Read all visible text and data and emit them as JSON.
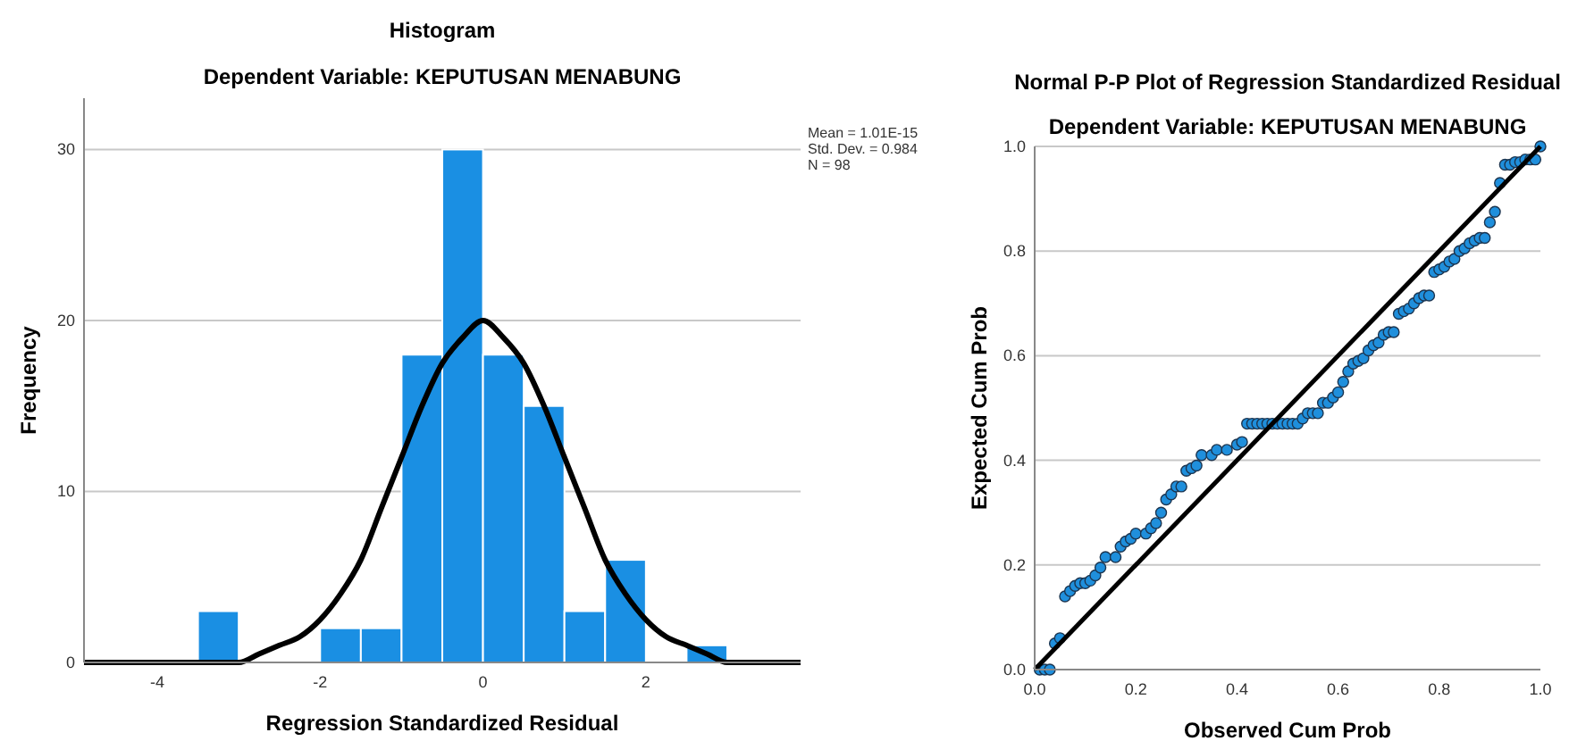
{
  "chart_data": [
    {
      "type": "histogram",
      "title": "Histogram",
      "subtitle": "Dependent Variable: KEPUTUSAN MENABUNG",
      "xlabel": "Regression Standardized Residual",
      "ylabel": "Frequency",
      "xlim": [
        -4.9,
        3.9
      ],
      "ylim": [
        0,
        33
      ],
      "xticks": [
        -4,
        -2,
        0,
        2
      ],
      "yticks": [
        0,
        10,
        20,
        30
      ],
      "grid": "y",
      "annotations": [
        "Mean = 1.01E-15",
        "Std. Dev. = 0.984",
        "N = 98"
      ],
      "series": [
        {
          "type": "histogram",
          "color": "#1a8fe3",
          "bins": [
            -3.5,
            -3,
            -2.5,
            -2,
            -1.5,
            -1,
            -0.5,
            0,
            0.5,
            1,
            1.5,
            2,
            2.5,
            3
          ],
          "values": [
            3,
            0,
            0,
            2,
            2,
            18,
            30,
            18,
            15,
            3,
            6,
            0,
            1
          ]
        },
        {
          "type": "line",
          "color": "#000000",
          "x": [
            -4.9,
            -4,
            -3.75,
            -3.5,
            -3.25,
            -3,
            -2.75,
            -2.5,
            -2.25,
            -2,
            -1.75,
            -1.5,
            -1.25,
            -1,
            -0.75,
            -0.5,
            -0.25,
            0,
            0.25,
            0.5,
            0.75,
            1,
            1.25,
            1.5,
            1.75,
            2,
            2.25,
            2.5,
            2.75,
            3,
            3.25,
            3.5,
            3.75,
            3.9
          ],
          "values": [
            0,
            0,
            0,
            0,
            0,
            0,
            0.5,
            1,
            1.5,
            2.5,
            4,
            6,
            9,
            12,
            15,
            17.5,
            19,
            20,
            19,
            17.5,
            15,
            12,
            9,
            6,
            4,
            2.5,
            1.5,
            1,
            0.5,
            0,
            0,
            0,
            0,
            0
          ]
        }
      ]
    },
    {
      "type": "scatter",
      "title": "Normal P-P Plot of Regression Standardized Residual",
      "subtitle": "Dependent Variable: KEPUTUSAN MENABUNG",
      "xlabel": "Observed Cum Prob",
      "ylabel": "Expected Cum Prob",
      "xlim": [
        0,
        1
      ],
      "ylim": [
        0,
        1
      ],
      "xticks": [
        {
          "value": 0,
          "label": "0.0"
        },
        {
          "value": 0.2,
          "label": "0.2"
        },
        {
          "value": 0.4,
          "label": "0.4"
        },
        {
          "value": 0.6,
          "label": "0.6"
        },
        {
          "value": 0.8,
          "label": "0.8"
        },
        {
          "value": 1,
          "label": "1.0"
        }
      ],
      "yticks": [
        {
          "value": 0,
          "label": "0.0"
        },
        {
          "value": 0.2,
          "label": "0.2"
        },
        {
          "value": 0.4,
          "label": "0.4"
        },
        {
          "value": 0.6,
          "label": "0.6"
        },
        {
          "value": 0.8,
          "label": "0.8"
        },
        {
          "value": 1,
          "label": "1.0"
        }
      ],
      "grid": "y",
      "series": [
        {
          "type": "scatter",
          "color": "#1f8fdc",
          "marker": "circle",
          "x": [
            0.01,
            0.02,
            0.03,
            0.04,
            0.05,
            0.06,
            0.07,
            0.08,
            0.09,
            0.1,
            0.11,
            0.12,
            0.13,
            0.14,
            0.16,
            0.17,
            0.18,
            0.19,
            0.2,
            0.22,
            0.23,
            0.24,
            0.25,
            0.26,
            0.27,
            0.28,
            0.29,
            0.3,
            0.31,
            0.32,
            0.33,
            0.35,
            0.36,
            0.38,
            0.4,
            0.41,
            0.42,
            0.43,
            0.44,
            0.45,
            0.46,
            0.47,
            0.48,
            0.49,
            0.5,
            0.51,
            0.52,
            0.53,
            0.54,
            0.55,
            0.56,
            0.57,
            0.58,
            0.59,
            0.6,
            0.61,
            0.62,
            0.63,
            0.64,
            0.65,
            0.66,
            0.67,
            0.68,
            0.69,
            0.7,
            0.71,
            0.72,
            0.73,
            0.74,
            0.75,
            0.76,
            0.77,
            0.78,
            0.79,
            0.8,
            0.81,
            0.82,
            0.83,
            0.84,
            0.85,
            0.86,
            0.87,
            0.88,
            0.89,
            0.9,
            0.91,
            0.92,
            0.93,
            0.94,
            0.95,
            0.96,
            0.97,
            0.98,
            0.99,
            1.0
          ],
          "values": [
            0,
            0,
            0,
            0.05,
            0.06,
            0.14,
            0.15,
            0.16,
            0.165,
            0.165,
            0.17,
            0.18,
            0.195,
            0.215,
            0.215,
            0.235,
            0.245,
            0.25,
            0.26,
            0.26,
            0.27,
            0.28,
            0.3,
            0.325,
            0.335,
            0.35,
            0.35,
            0.38,
            0.385,
            0.39,
            0.41,
            0.41,
            0.42,
            0.42,
            0.43,
            0.435,
            0.47,
            0.47,
            0.47,
            0.47,
            0.47,
            0.47,
            0.47,
            0.47,
            0.47,
            0.47,
            0.47,
            0.48,
            0.49,
            0.49,
            0.49,
            0.51,
            0.51,
            0.52,
            0.53,
            0.55,
            0.57,
            0.585,
            0.59,
            0.595,
            0.61,
            0.62,
            0.625,
            0.64,
            0.645,
            0.645,
            0.68,
            0.685,
            0.69,
            0.7,
            0.71,
            0.715,
            0.715,
            0.76,
            0.765,
            0.77,
            0.78,
            0.785,
            0.8,
            0.805,
            0.815,
            0.82,
            0.825,
            0.825,
            0.855,
            0.875,
            0.93,
            0.965,
            0.965,
            0.97,
            0.97,
            0.975,
            0.975,
            0.975,
            1.0
          ]
        },
        {
          "type": "line",
          "color": "#000000",
          "x": [
            0,
            1
          ],
          "values": [
            0,
            1
          ]
        }
      ]
    }
  ]
}
